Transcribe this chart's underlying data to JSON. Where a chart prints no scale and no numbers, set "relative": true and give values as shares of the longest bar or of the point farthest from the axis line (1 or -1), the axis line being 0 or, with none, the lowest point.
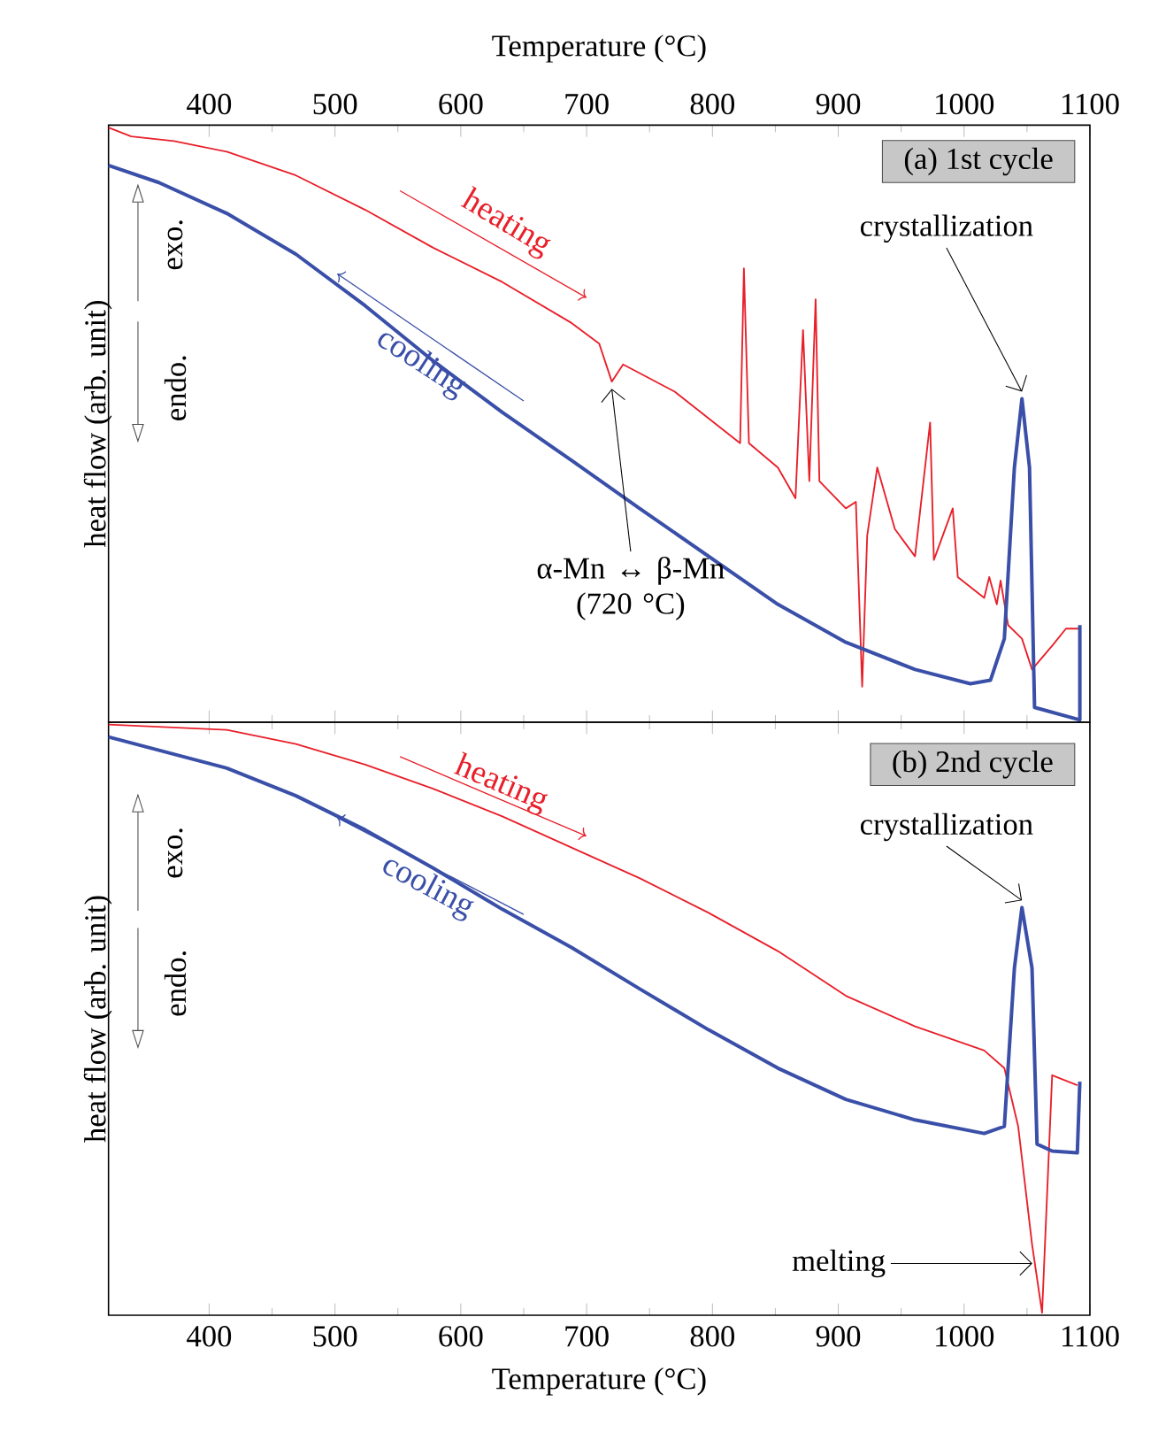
{
  "chart_data": [
    {
      "type": "line",
      "relative": true,
      "xlabel": "Temperature (°C)",
      "ylabel": "heat flow (arb. unit)",
      "xlim": [
        320,
        1100
      ],
      "xticks": [
        400,
        500,
        600,
        700,
        800,
        900,
        1000,
        1100
      ],
      "tick_labels": "x",
      "grid": false,
      "legend": false,
      "series": [
        {
          "name": "heating",
          "color": "#e8202a",
          "x": [
            320,
            338,
            372,
            414,
            469,
            524,
            578,
            633,
            688,
            710,
            720,
            729,
            770,
            822,
            825,
            829,
            852,
            866,
            872,
            877,
            882,
            885,
            906,
            914,
            919,
            923,
            931,
            945,
            961,
            973,
            976,
            991,
            995,
            1016,
            1020,
            1026,
            1029,
            1035,
            1046,
            1054,
            1070,
            1081,
            1092
          ],
          "values": [
            1.0,
            0.985,
            0.977,
            0.959,
            0.919,
            0.861,
            0.797,
            0.739,
            0.67,
            0.635,
            0.571,
            0.6,
            0.554,
            0.467,
            0.762,
            0.467,
            0.426,
            0.374,
            0.658,
            0.403,
            0.71,
            0.403,
            0.357,
            0.368,
            0.056,
            0.311,
            0.426,
            0.322,
            0.276,
            0.502,
            0.27,
            0.357,
            0.241,
            0.206,
            0.241,
            0.195,
            0.235,
            0.16,
            0.137,
            0.085,
            0.125,
            0.154,
            0.154
          ]
        },
        {
          "name": "cooling",
          "color": "#3a4fa8",
          "x": [
            320,
            360,
            414,
            469,
            524,
            578,
            633,
            688,
            742,
            797,
            852,
            906,
            961,
            1005,
            1021,
            1032,
            1040,
            1046,
            1052,
            1056,
            1092,
            1092
          ],
          "values": [
            0.936,
            0.907,
            0.855,
            0.786,
            0.699,
            0.606,
            0.519,
            0.438,
            0.357,
            0.276,
            0.195,
            0.131,
            0.085,
            0.061,
            0.067,
            0.137,
            0.426,
            0.542,
            0.426,
            0.021,
            0.0,
            0.16
          ]
        }
      ],
      "annotations": [
        "(a) 1st cycle",
        "exo.",
        "endo.",
        {
          "text": "crystallization",
          "x": 1046,
          "y": 0.542
        },
        {
          "text": "α-Mn ↔ β-Mn (720 °C)",
          "x": 720,
          "y": 0.571
        }
      ]
    },
    {
      "type": "line",
      "relative": true,
      "xlabel": "Temperature (°C)",
      "ylabel": "heat flow (arb. unit)",
      "xlim": [
        320,
        1100
      ],
      "xticks": [
        400,
        500,
        600,
        700,
        800,
        900,
        1000,
        1100
      ],
      "tick_labels": "x",
      "grid": false,
      "legend": false,
      "series": [
        {
          "name": "heating",
          "color": "#e8202a",
          "x": [
            320,
            414,
            469,
            524,
            578,
            633,
            688,
            742,
            797,
            852,
            906,
            961,
            1016,
            1032,
            1043,
            1054,
            1062,
            1070,
            1090
          ],
          "values": [
            1.0,
            0.991,
            0.967,
            0.932,
            0.891,
            0.844,
            0.791,
            0.739,
            0.68,
            0.615,
            0.539,
            0.487,
            0.446,
            0.416,
            0.317,
            0.117,
            0.0,
            0.404,
            0.387
          ]
        },
        {
          "name": "cooling",
          "color": "#3a4fa8",
          "x": [
            320,
            414,
            469,
            524,
            578,
            633,
            688,
            742,
            797,
            852,
            906,
            961,
            1016,
            1032,
            1040,
            1046,
            1054,
            1058,
            1070,
            1090,
            1092
          ],
          "values": [
            0.979,
            0.926,
            0.879,
            0.821,
            0.756,
            0.686,
            0.621,
            0.551,
            0.481,
            0.416,
            0.363,
            0.328,
            0.305,
            0.317,
            0.586,
            0.689,
            0.586,
            0.287,
            0.275,
            0.272,
            0.393
          ]
        }
      ],
      "annotations": [
        "(b) 2nd cycle",
        "exo.",
        "endo.",
        {
          "text": "crystallization",
          "x": 1046,
          "y": 0.689
        },
        {
          "text": "melting",
          "x": 1058,
          "y": 0.084
        }
      ]
    }
  ]
}
